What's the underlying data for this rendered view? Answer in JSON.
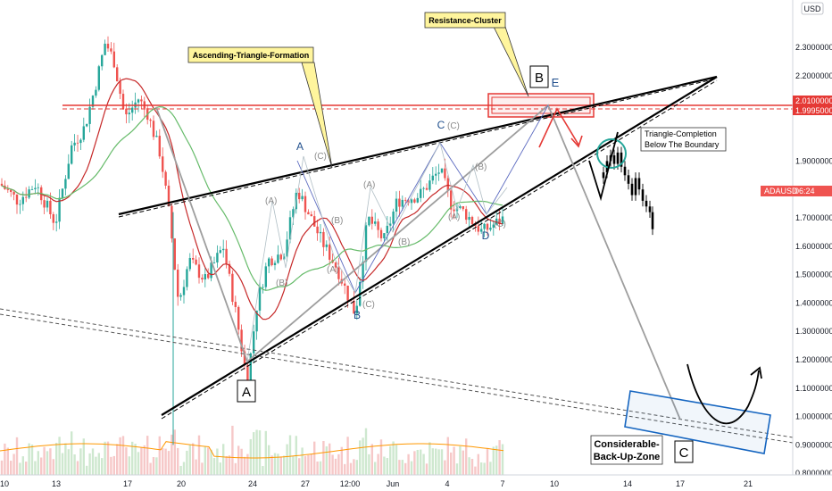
{
  "chart_data": {
    "type": "candlestick",
    "symbol": "ADAUSD",
    "currency": "USD",
    "price_tag": {
      "symbol": "ADAUSD",
      "time_left": "06:24"
    },
    "resistance_labels": [
      "2.01000000",
      "1.99950000"
    ],
    "y_ticks": [
      "2.30000000",
      "2.20000000",
      "2.10000000",
      "1.90000000",
      "1.80000000",
      "1.70000000",
      "1.60000000",
      "1.50000000",
      "1.40000000",
      "1.30000000",
      "1.20000000",
      "1.10000000",
      "1.00000000",
      "0.90000000",
      "0.80000000"
    ],
    "x_ticks": [
      "10",
      "13",
      "17",
      "20",
      "24",
      "27",
      "12:00",
      "Jun",
      "4",
      "7",
      "10",
      "14",
      "17",
      "21"
    ],
    "ylim": [
      0.78,
      2.34
    ],
    "colors": {
      "up": "#26a69a",
      "down": "#ef5350",
      "ma_red": "#c62828",
      "ma_green": "#66bb6a",
      "wave_blue": "#1f4e8c",
      "wave_gray": "#9e9e9e",
      "resistance": "#e53935",
      "zone": "#1565c0",
      "callout_bg": "#fff59d"
    },
    "annotations": {
      "ascending_triangle": "Ascending-Triangle-Formation",
      "resistance_cluster": "Resistance-Cluster",
      "triangle_completion_1": "Triangle-Completion",
      "triangle_completion_2": "Below The Boundary",
      "backup_zone_1": "Considerable-",
      "backup_zone_2": "Back-Up-Zone"
    },
    "major_waves": {
      "A": "A",
      "B": "B",
      "C": "C"
    },
    "minor_waves": {
      "A": "A",
      "B": "B",
      "C": "C",
      "D": "D",
      "E": "E"
    },
    "sub_waves": {
      "a": "(A)",
      "b": "(B)",
      "c": "(C)"
    }
  }
}
